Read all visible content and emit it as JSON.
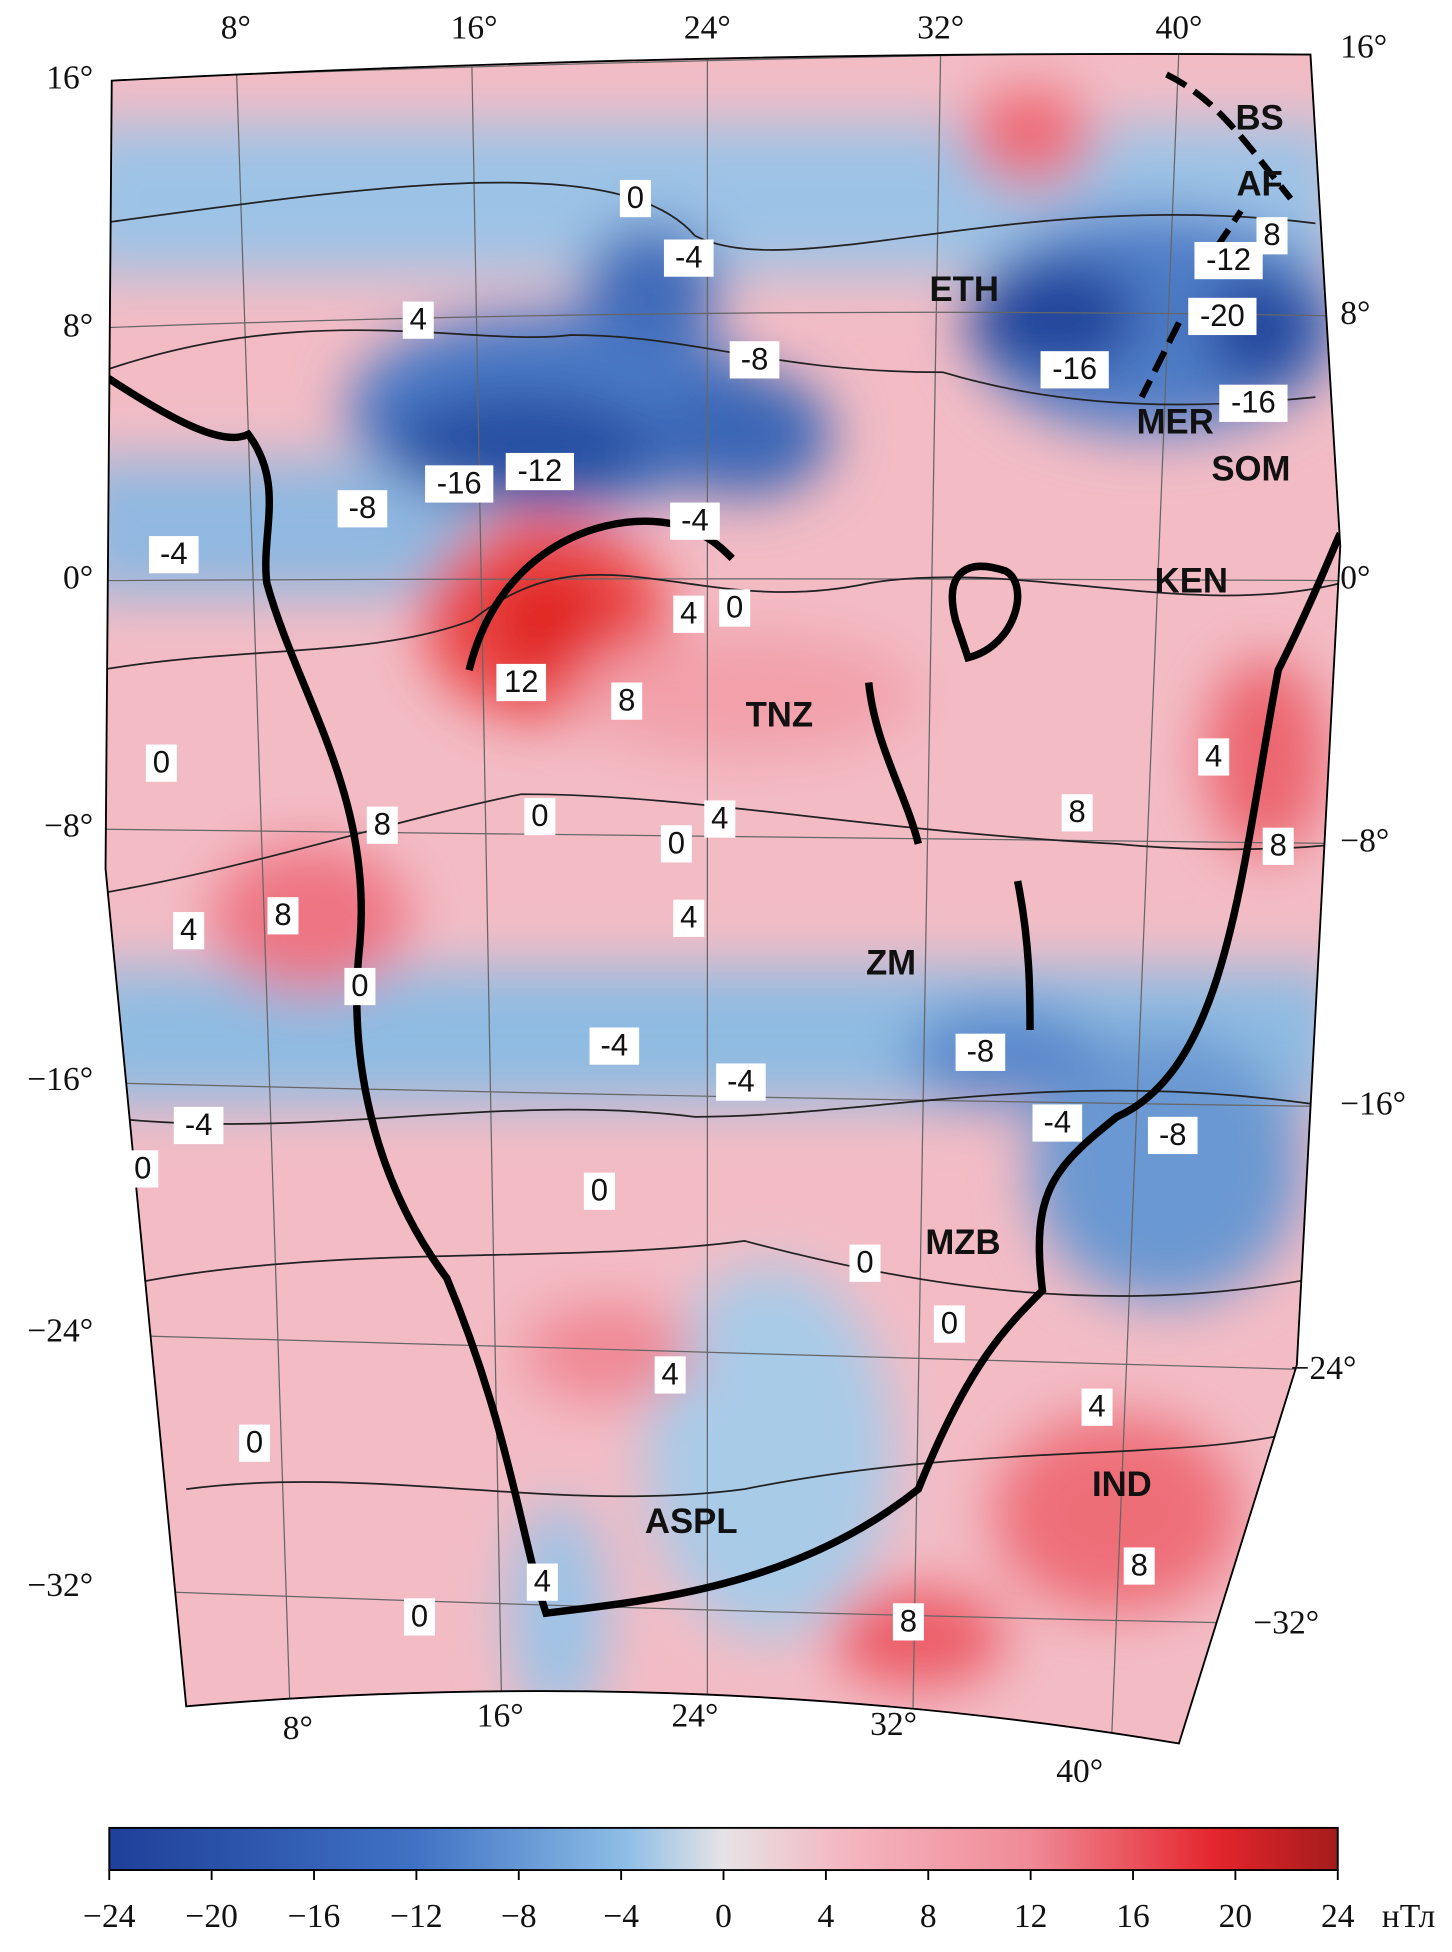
{
  "map": {
    "lat_labels_left": [
      "16°",
      "8°",
      "0°",
      "−8°",
      "−16°",
      "−24°",
      "−32°"
    ],
    "lat_labels_right": [
      "16°",
      "8°",
      "0°",
      "−8°",
      "−16°",
      "−24°",
      "−32°"
    ],
    "lon_labels_top": [
      "8°",
      "16°",
      "24°",
      "32°",
      "40°"
    ],
    "lon_labels_bottom": [
      "8°",
      "16°",
      "24°",
      "32°",
      "40°"
    ],
    "regions": [
      "BS",
      "AF",
      "ETH",
      "MER",
      "SOM",
      "KEN",
      "TNZ",
      "ZM",
      "MZB",
      "ASPL",
      "IND"
    ],
    "contour_labels": [
      "0",
      "-4",
      "4",
      "-8",
      "-16",
      "-16",
      "-12",
      "8",
      "-20",
      "-16",
      "-12",
      "-8",
      "-4",
      "-4",
      "4",
      "0",
      "12",
      "8",
      "0",
      "0",
      "4",
      "0",
      "8",
      "8",
      "4",
      "8",
      "8",
      "4",
      "4",
      "0",
      "-4",
      "-4",
      "-8",
      "-4",
      "-8",
      "-4",
      "0",
      "0",
      "0",
      "0",
      "4",
      "0",
      "4",
      "8",
      "8",
      "0",
      "4"
    ]
  },
  "colorbar": {
    "lim": [
      -24,
      24
    ],
    "unit": "нТл",
    "ticks": [
      {
        "value": -24,
        "label": "−24"
      },
      {
        "value": -20,
        "label": "−20"
      },
      {
        "value": -16,
        "label": "−16"
      },
      {
        "value": -12,
        "label": "−12"
      },
      {
        "value": -8,
        "label": "−8"
      },
      {
        "value": -4,
        "label": "−4"
      },
      0,
      4,
      8,
      12,
      16,
      20,
      24
    ]
  }
}
